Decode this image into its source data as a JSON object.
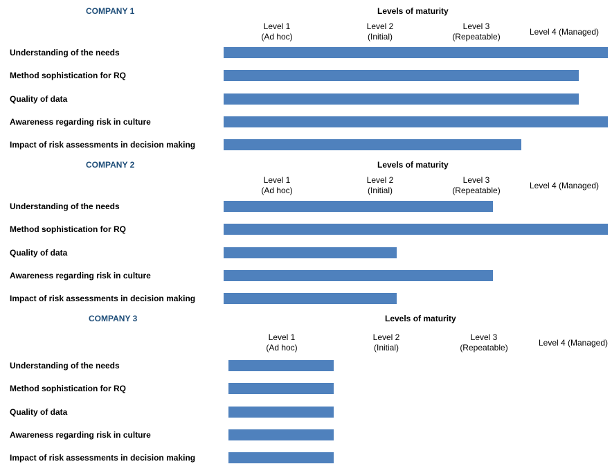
{
  "chart_data": [
    {
      "type": "bar",
      "orientation": "horizontal",
      "title": "COMPANY 1",
      "xlabel": "Levels of maturity",
      "levels": [
        {
          "line1": "Level 1",
          "line2": "(Ad hoc)"
        },
        {
          "line1": "Level 2",
          "line2": "(Initial)"
        },
        {
          "line1": "Level 3",
          "line2": "(Repeatable)"
        },
        {
          "line1": "Level 4 (Managed)",
          "line2": ""
        }
      ],
      "xlim": [
        0,
        4
      ],
      "bar_color": "#4f81bd",
      "categories": [
        "Understanding of the needs",
        "Method sophistication for RQ",
        "Quality of data",
        "Awareness regarding risk in culture",
        "Impact of risk assessments in decision making"
      ],
      "values": [
        4.0,
        3.7,
        3.7,
        4.0,
        3.1
      ]
    },
    {
      "type": "bar",
      "orientation": "horizontal",
      "title": "COMPANY 2",
      "xlabel": "Levels of maturity",
      "levels": [
        {
          "line1": "Level 1",
          "line2": "(Ad hoc)"
        },
        {
          "line1": "Level 2",
          "line2": "(Initial)"
        },
        {
          "line1": "Level 3",
          "line2": "(Repeatable)"
        },
        {
          "line1": "Level 4 (Managed)",
          "line2": ""
        }
      ],
      "xlim": [
        0,
        4
      ],
      "bar_color": "#4f81bd",
      "categories": [
        "Understanding of the needs",
        "Method sophistication for RQ",
        "Quality of data",
        "Awareness regarding risk in culture",
        "Impact of risk assessments in decision making"
      ],
      "values": [
        2.8,
        4.0,
        1.8,
        2.8,
        1.8
      ]
    },
    {
      "type": "bar",
      "orientation": "horizontal",
      "title": "COMPANY 3",
      "xlabel": "Levels of maturity",
      "levels": [
        {
          "line1": "Level 1",
          "line2": "(Ad hoc)"
        },
        {
          "line1": "Level 2",
          "line2": "(Initial)"
        },
        {
          "line1": "Level 3",
          "line2": "(Repeatable)"
        },
        {
          "line1": "Level 4 (Managed)",
          "line2": ""
        }
      ],
      "xlim": [
        0,
        4
      ],
      "bar_color": "#4f81bd",
      "categories": [
        "Understanding of the needs",
        "Method sophistication for RQ",
        "Quality of data",
        "Awareness regarding risk in culture",
        "Impact of risk assessments in decision making"
      ],
      "values": [
        1.1,
        1.1,
        1.1,
        1.1,
        1.1
      ]
    }
  ]
}
